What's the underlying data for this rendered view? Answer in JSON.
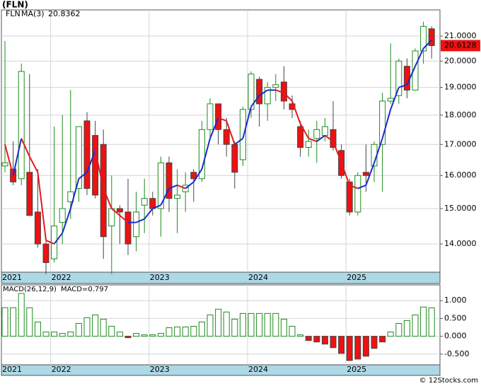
{
  "chart_data": [
    {
      "type": "candlestick",
      "title": "(FLN)",
      "categories": [
        "2021",
        null,
        null,
        null,
        null,
        null,
        "2022",
        null,
        null,
        null,
        null,
        null,
        null,
        null,
        null,
        null,
        null,
        null,
        "2023",
        null,
        null,
        null,
        null,
        null,
        null,
        null,
        null,
        null,
        null,
        null,
        "2024",
        null,
        null,
        null,
        null,
        null,
        null,
        null,
        null,
        null,
        null,
        null,
        "2025",
        null,
        null,
        null,
        null,
        null,
        null,
        null,
        null,
        null,
        null
      ],
      "series": [
        {
          "name": "FLN",
          "up_color": "#1e8c1e",
          "down_color": "#ee1111",
          "open": [
            16.3,
            16.2,
            15.9,
            16.1,
            14.9,
            14.0,
            13.6,
            14.6,
            15.2,
            15.6,
            17.8,
            17.3,
            17.0,
            14.5,
            15.0,
            14.9,
            14.2,
            15.1,
            15.3,
            15.0,
            16.4,
            15.3,
            15.5,
            16.1,
            15.9,
            17.5,
            18.4,
            17.5,
            17.0,
            16.5,
            18.2,
            19.3,
            18.4,
            19.0,
            19.2,
            18.4,
            17.6,
            16.9,
            17.2,
            17.3,
            17.5,
            16.8,
            15.8,
            14.9,
            16.1,
            16.3,
            17.0,
            18.5,
            18.7,
            19.8,
            18.9,
            20.4,
            21.3
          ],
          "high": [
            20.8,
            17.1,
            19.9,
            19.5,
            16.2,
            14.1,
            17.6,
            18.0,
            18.9,
            17.6,
            18.1,
            17.8,
            17.5,
            16.0,
            15.1,
            15.9,
            15.5,
            15.9,
            15.5,
            16.6,
            16.6,
            16.2,
            16.1,
            16.2,
            17.8,
            18.6,
            18.4,
            17.9,
            17.1,
            18.3,
            19.6,
            19.4,
            19.2,
            19.5,
            19.8,
            18.7,
            17.8,
            17.5,
            17.8,
            17.9,
            18.5,
            17.0,
            15.9,
            16.1,
            17.0,
            17.1,
            18.8,
            20.7,
            20.1,
            20.1,
            20.5,
            21.6,
            21.4
          ],
          "low": [
            16.1,
            15.7,
            15.7,
            14.8,
            13.9,
            13.2,
            13.5,
            14.0,
            14.7,
            15.2,
            15.4,
            15.3,
            13.6,
            13.2,
            14.0,
            13.7,
            13.8,
            14.3,
            14.8,
            14.2,
            14.9,
            14.3,
            14.9,
            15.2,
            15.8,
            17.2,
            17.0,
            16.6,
            15.6,
            16.3,
            17.9,
            17.6,
            17.8,
            18.5,
            18.2,
            17.9,
            16.6,
            16.6,
            16.4,
            17.1,
            16.8,
            15.9,
            14.8,
            14.8,
            15.5,
            15.8,
            15.5,
            18.4,
            18.4,
            18.6,
            18.9,
            19.9,
            20.1
          ],
          "close": [
            16.4,
            15.8,
            19.6,
            14.8,
            14.0,
            13.5,
            14.5,
            15.0,
            15.5,
            17.6,
            15.6,
            15.4,
            14.2,
            15.0,
            14.9,
            14.0,
            14.9,
            15.3,
            15.0,
            16.4,
            15.3,
            15.4,
            15.7,
            15.9,
            17.5,
            18.4,
            17.5,
            17.0,
            16.1,
            18.2,
            19.5,
            18.4,
            19.0,
            19.1,
            18.5,
            18.2,
            16.9,
            17.1,
            17.5,
            17.6,
            16.9,
            16.0,
            14.9,
            16.0,
            16.0,
            17.0,
            18.5,
            18.6,
            20.0,
            18.9,
            20.4,
            21.4,
            20.6128
          ]
        },
        {
          "name": "MA(3)",
          "up_color": "#1a2bd0",
          "down_color": "#e31a1c",
          "values": [
            17.0,
            16.0,
            17.2,
            16.6,
            16.1,
            14.1,
            14.0,
            14.3,
            15.0,
            15.9,
            16.1,
            16.8,
            15.6,
            15.0,
            14.8,
            14.6,
            14.6,
            14.7,
            15.0,
            15.1,
            15.6,
            15.7,
            15.6,
            15.8,
            16.2,
            17.2,
            17.9,
            17.8,
            17.0,
            17.2,
            18.3,
            18.7,
            18.9,
            18.9,
            18.8,
            18.5,
            17.7,
            17.2,
            17.1,
            17.3,
            17.1,
            16.4,
            15.7,
            15.6,
            15.7,
            16.4,
            17.2,
            18.2,
            19.0,
            19.1,
            19.8,
            20.5,
            20.8362
          ]
        }
      ],
      "log_scale": true,
      "grid": true,
      "ylim": [
        13.25,
        22.1
      ],
      "yticks": [
        {
          "value": 14,
          "label": "14.0000"
        },
        {
          "value": 15,
          "label": "15.0000"
        },
        {
          "value": 16,
          "label": "16.0000"
        },
        {
          "value": 17,
          "label": "17.0000"
        },
        {
          "value": 18,
          "label": "18.0000"
        },
        {
          "value": 19,
          "label": "19.0000"
        },
        {
          "value": 20,
          "label": "20.0000"
        },
        {
          "value": 21,
          "label": "21.0000"
        }
      ]
    },
    {
      "type": "bar",
      "title": "MACD(26,12,9)",
      "legend": "MACD=0.797",
      "up_color": "#1e8c1e",
      "down_color": "#ee1111",
      "values": [
        0.8,
        0.8,
        1.2,
        0.8,
        0.4,
        0.12,
        0.12,
        0.08,
        0.12,
        0.36,
        0.52,
        0.6,
        0.48,
        0.28,
        0.12,
        -0.04,
        0.08,
        0.04,
        0.04,
        0.08,
        0.24,
        0.26,
        0.26,
        0.28,
        0.4,
        0.6,
        0.76,
        0.68,
        0.48,
        0.64,
        0.64,
        0.64,
        0.64,
        0.64,
        0.48,
        0.28,
        0.04,
        -0.12,
        -0.16,
        -0.22,
        -0.32,
        -0.48,
        -0.68,
        -0.64,
        -0.56,
        -0.34,
        -0.16,
        0.12,
        0.36,
        0.44,
        0.6,
        0.82,
        0.797
      ],
      "ylim": [
        -0.8,
        1.44
      ],
      "yticks": [
        {
          "value": -0.5,
          "label": "-0.500"
        },
        {
          "value": 0,
          "label": "0.000"
        },
        {
          "value": 0.5,
          "label": "0.500"
        },
        {
          "value": 1,
          "label": "1.000"
        }
      ],
      "grid": true
    }
  ],
  "footer": "© 12Stocks.com"
}
